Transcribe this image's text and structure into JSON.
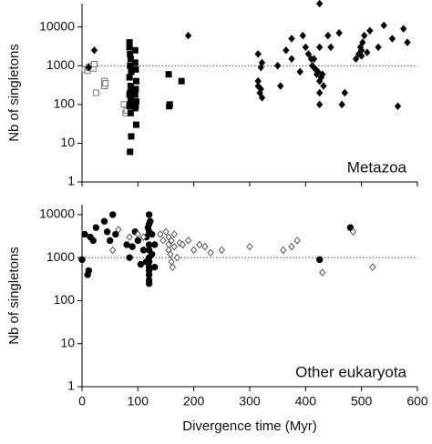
{
  "chart_data": [
    {
      "type": "scatter",
      "ylabel": "Nb of singletons",
      "annotation": "Metazoa",
      "log_y": true,
      "xlim": [
        0,
        600
      ],
      "xticks": [
        0,
        100,
        200,
        300,
        400,
        500,
        600
      ],
      "xtick_labels": false,
      "ylim": [
        1,
        40000
      ],
      "yticks": [
        1,
        10,
        100,
        1000,
        10000
      ],
      "hline": 1000,
      "series": [
        {
          "marker": "square",
          "filled": false,
          "color": "#777777",
          "x": [
            5,
            10,
            12,
            15,
            18,
            20,
            22,
            25,
            40,
            40,
            42,
            75,
            78,
            80
          ],
          "values": [
            800,
            750,
            900,
            950,
            1000,
            850,
            1100,
            200,
            300,
            400,
            350,
            100,
            60,
            70
          ]
        },
        {
          "marker": "square",
          "filled": true,
          "color": "#000000",
          "x": [
            85,
            85,
            86,
            87,
            86,
            88,
            85,
            87,
            88,
            86,
            85,
            87,
            88,
            86,
            85,
            87,
            88,
            86,
            95,
            95,
            96,
            97,
            96,
            95,
            97,
            96,
            95,
            97,
            155,
            157,
            156,
            178
          ],
          "values": [
            4000,
            3000,
            2000,
            1500,
            1000,
            700,
            500,
            300,
            250,
            200,
            180,
            150,
            120,
            100,
            90,
            60,
            15,
            6,
            2500,
            1200,
            800,
            400,
            250,
            180,
            120,
            90,
            80,
            30,
            600,
            100,
            90,
            400
          ]
        },
        {
          "marker": "diamond",
          "filled": true,
          "color": "#000000",
          "x": [
            12,
            22,
            190,
            315,
            315,
            315,
            318,
            320,
            322,
            320,
            322,
            350,
            355,
            365,
            375,
            375,
            390,
            395,
            400,
            405,
            410,
            412,
            415,
            418,
            420,
            422,
            425,
            425,
            425,
            425,
            425,
            428,
            430,
            432,
            440,
            445,
            460,
            465,
            470,
            490,
            495,
            498,
            500,
            500,
            502,
            505,
            510,
            515,
            530,
            540,
            555,
            565,
            575,
            582
          ],
          "values": [
            900,
            2500,
            6000,
            2000,
            400,
            300,
            200,
            250,
            150,
            900,
            1200,
            1000,
            300,
            2500,
            1500,
            5000,
            700,
            6000,
            3000,
            2000,
            1500,
            1000,
            1500,
            800,
            600,
            700,
            400,
            200,
            100,
            3000,
            40000,
            500,
            600,
            300,
            6000,
            3000,
            7000,
            100,
            200,
            1500,
            2000,
            3000,
            2500,
            1800,
            4000,
            6000,
            2200,
            8000,
            3000,
            11000,
            5000,
            90,
            9000,
            4000
          ]
        }
      ]
    },
    {
      "type": "scatter",
      "ylabel": "Nb of singletons",
      "xlabel": "Divergence time (Myr)",
      "annotation": "Other eukaryota",
      "log_y": true,
      "xlim": [
        0,
        600
      ],
      "xticks": [
        0,
        100,
        200,
        300,
        400,
        500,
        600
      ],
      "xtick_labels": true,
      "ylim": [
        1,
        17000
      ],
      "yticks": [
        1,
        10,
        100,
        1000,
        10000
      ],
      "hline": 1000,
      "series": [
        {
          "marker": "circle",
          "filled": true,
          "color": "#000000",
          "x": [
            0,
            5,
            10,
            12,
            15,
            20,
            25,
            40,
            45,
            50,
            55,
            60,
            80,
            85,
            90,
            95,
            100,
            105,
            110,
            115,
            115,
            118,
            120,
            120,
            120,
            120,
            120,
            120,
            120,
            120,
            120,
            120,
            120,
            120,
            122,
            125,
            125,
            130,
            130,
            425,
            480
          ],
          "values": [
            900,
            3500,
            400,
            500,
            3000,
            2500,
            5000,
            7000,
            4000,
            2500,
            10000,
            3500,
            2000,
            1000,
            1800,
            4000,
            2500,
            700,
            1500,
            800,
            3000,
            5000,
            10000,
            6000,
            4000,
            2000,
            1500,
            1000,
            800,
            600,
            500,
            400,
            300,
            250,
            7000,
            3500,
            1200,
            2000,
            600,
            900,
            5000
          ]
        },
        {
          "marker": "diamond",
          "filled": false,
          "color": "#555555",
          "x": [
            55,
            65,
            85,
            100,
            110,
            140,
            145,
            150,
            155,
            155,
            155,
            158,
            160,
            160,
            162,
            165,
            165,
            170,
            175,
            180,
            190,
            200,
            210,
            220,
            230,
            250,
            300,
            360,
            375,
            385,
            430,
            485,
            520
          ],
          "values": [
            1500,
            4500,
            3000,
            3500,
            3000,
            3500,
            2500,
            4000,
            3000,
            2000,
            1500,
            1200,
            2500,
            800,
            600,
            3500,
            1800,
            1000,
            2200,
            2000,
            2500,
            1500,
            2000,
            1800,
            1300,
            1500,
            1800,
            1500,
            1800,
            2500,
            450,
            4000,
            600
          ]
        }
      ]
    }
  ]
}
